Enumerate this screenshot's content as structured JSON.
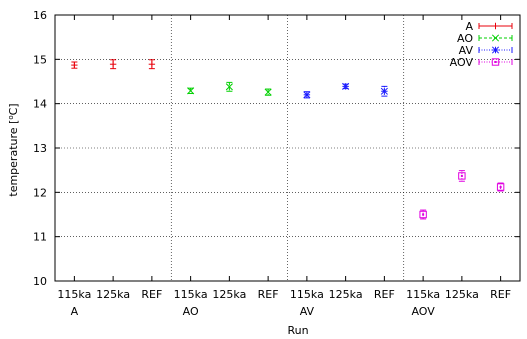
{
  "chart_data": {
    "type": "scatter",
    "xlabel": "Run",
    "ylabel": "temperature [",
    "ylabel_sup": "o",
    "ylabel_end": "C]",
    "ylim": [
      10,
      16
    ],
    "yticks": [
      10,
      11,
      12,
      13,
      14,
      15,
      16
    ],
    "categories": [
      "115ka",
      "125ka",
      "REF",
      "115ka",
      "125ka",
      "REF",
      "115ka",
      "125ka",
      "REF",
      "115ka",
      "125ka",
      "REF"
    ],
    "groups": [
      "A",
      "AO",
      "AV",
      "AOV"
    ],
    "grid": true,
    "legend_position": "top-right",
    "series": [
      {
        "name": "A",
        "color": "#e8000b",
        "line": "solid",
        "marker": "plus",
        "x": [
          0,
          1,
          2
        ],
        "values": [
          14.87,
          14.89,
          14.89
        ],
        "errors": [
          0.07,
          0.1,
          0.1
        ]
      },
      {
        "name": "AO",
        "color": "#00d000",
        "line": "dashed",
        "marker": "cross",
        "x": [
          3,
          4,
          5
        ],
        "values": [
          14.29,
          14.38,
          14.26
        ],
        "errors": [
          0.06,
          0.1,
          0.07
        ]
      },
      {
        "name": "AV",
        "color": "#1a1aff",
        "line": "dotted",
        "marker": "star",
        "x": [
          6,
          7,
          8
        ],
        "values": [
          14.2,
          14.39,
          14.28
        ],
        "errors": [
          0.07,
          0.05,
          0.11
        ]
      },
      {
        "name": "AOV",
        "color": "#e000e0",
        "line": "dotted",
        "marker": "box",
        "x": [
          9,
          10,
          11
        ],
        "values": [
          11.5,
          12.37,
          12.12
        ],
        "errors": [
          0.1,
          0.12,
          0.09
        ]
      }
    ]
  }
}
